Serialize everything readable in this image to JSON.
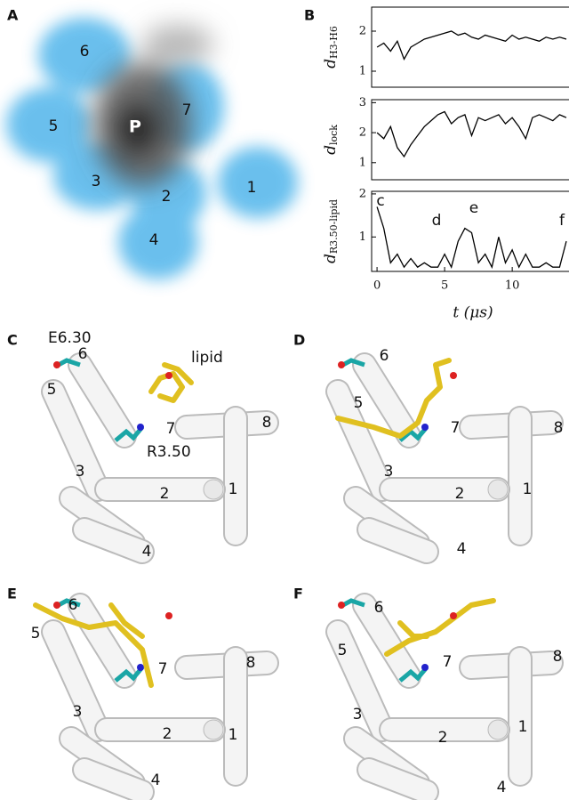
{
  "panel_letters": [
    "A",
    "B",
    "C",
    "D",
    "E",
    "F"
  ],
  "panel_a_labels": [
    "6",
    "5",
    "7",
    "P",
    "3",
    "2",
    "1",
    "4"
  ],
  "panel_c": {
    "labels": [
      "6",
      "5",
      "7",
      "8",
      "3",
      "2",
      "1",
      "4"
    ],
    "residue_top": "E6.30",
    "residue_mid": "R3.50",
    "lipid": "lipid"
  },
  "panel_d": {
    "labels": [
      "6",
      "5",
      "7",
      "8",
      "3",
      "2",
      "1",
      "4"
    ]
  },
  "panel_e": {
    "labels": [
      "6",
      "5",
      "7",
      "8",
      "3",
      "2",
      "1",
      "4"
    ]
  },
  "panel_f": {
    "labels": [
      "6",
      "5",
      "7",
      "8",
      "3",
      "2",
      "1",
      "4"
    ]
  },
  "chart_data": [
    {
      "type": "line",
      "ylabel": {
        "symbol": "d",
        "subscript": "H3-H6"
      },
      "color": "#000000",
      "x": [
        0,
        0.5,
        1,
        1.5,
        2,
        2.5,
        3,
        3.5,
        4,
        4.5,
        5,
        5.5,
        6,
        6.5,
        7,
        7.5,
        8,
        8.5,
        9,
        9.5,
        10,
        10.5,
        11,
        11.5,
        12,
        12.5,
        13,
        13.5,
        14
      ],
      "values": [
        1.6,
        1.7,
        1.5,
        1.75,
        1.3,
        1.6,
        1.7,
        1.8,
        1.85,
        1.9,
        1.95,
        2.0,
        1.9,
        1.95,
        1.85,
        1.8,
        1.9,
        1.85,
        1.8,
        1.75,
        1.9,
        1.8,
        1.85,
        1.8,
        1.75,
        1.85,
        1.8,
        1.85,
        1.8
      ],
      "xlim": [
        -0.4,
        14.2
      ],
      "ylim": [
        0.6,
        2.6
      ],
      "yticks": [
        1,
        2
      ]
    },
    {
      "type": "line",
      "ylabel": {
        "symbol": "d",
        "subscript": "lock"
      },
      "color": "#000000",
      "x": [
        0,
        0.5,
        1,
        1.5,
        2,
        2.5,
        3,
        3.5,
        4,
        4.5,
        5,
        5.5,
        6,
        6.5,
        7,
        7.5,
        8,
        8.5,
        9,
        9.5,
        10,
        10.5,
        11,
        11.5,
        12,
        12.5,
        13,
        13.5,
        14
      ],
      "values": [
        2.0,
        1.8,
        2.2,
        1.5,
        1.2,
        1.6,
        1.9,
        2.2,
        2.4,
        2.6,
        2.7,
        2.3,
        2.5,
        2.6,
        1.9,
        2.5,
        2.4,
        2.5,
        2.6,
        2.3,
        2.5,
        2.2,
        1.8,
        2.5,
        2.6,
        2.5,
        2.4,
        2.6,
        2.5
      ],
      "xlim": [
        -0.4,
        14.2
      ],
      "ylim": [
        0.43,
        3.1
      ],
      "yticks": [
        1,
        2,
        3
      ]
    },
    {
      "type": "line",
      "ylabel": {
        "symbol": "d",
        "subscript": "R3.50-lipid"
      },
      "xlabel": "t (μs)",
      "color": "#000000",
      "x": [
        0,
        0.5,
        1,
        1.5,
        2,
        2.5,
        3,
        3.5,
        4,
        4.5,
        5,
        5.5,
        6,
        6.5,
        7,
        7.5,
        8,
        8.5,
        9,
        9.5,
        10,
        10.5,
        11,
        11.5,
        12,
        12.5,
        13,
        13.5,
        14
      ],
      "values": [
        1.7,
        1.2,
        0.4,
        0.6,
        0.3,
        0.5,
        0.3,
        0.4,
        0.3,
        0.3,
        0.6,
        0.3,
        0.9,
        1.2,
        1.1,
        0.4,
        0.6,
        0.3,
        1.0,
        0.4,
        0.7,
        0.3,
        0.6,
        0.3,
        0.3,
        0.4,
        0.3,
        0.3,
        0.9
      ],
      "xlim": [
        -0.4,
        14.2
      ],
      "ylim": [
        0.2,
        2.06
      ],
      "yticks": [
        1,
        2
      ],
      "xticks": [
        0,
        5,
        10
      ],
      "annotations": [
        "c",
        "d",
        "e",
        "f"
      ]
    }
  ]
}
